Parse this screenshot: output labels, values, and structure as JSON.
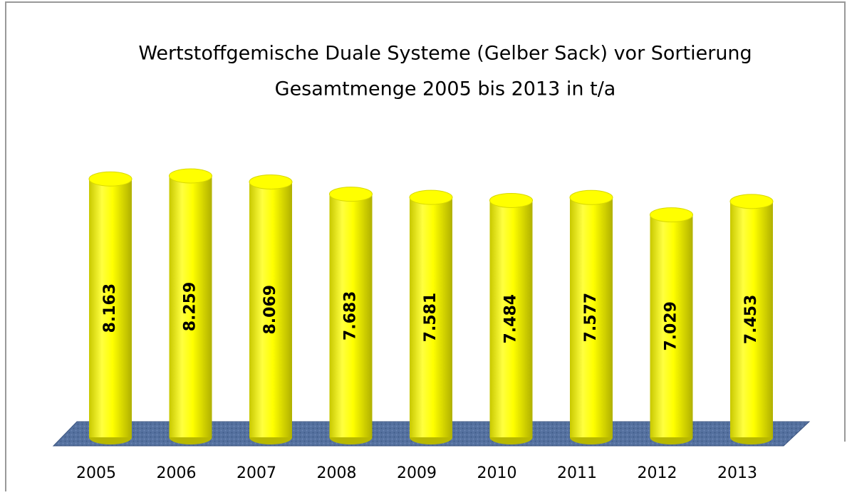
{
  "chart_data": {
    "type": "bar",
    "title": "Wertstoffgemische Duale Systeme (Gelber Sack) vor Sortierung",
    "subtitle": "Gesamtmenge 2005 bis 2013 in t/a",
    "categories": [
      "2005",
      "2006",
      "2007",
      "2008",
      "2009",
      "2010",
      "2011",
      "2012",
      "2013"
    ],
    "values": [
      8163,
      8259,
      8069,
      7683,
      7581,
      7484,
      7577,
      7029,
      7453
    ],
    "value_labels": [
      "8.163",
      "8.259",
      "8.069",
      "7.683",
      "7.581",
      "7.484",
      "7.577",
      "7.029",
      "7.453"
    ],
    "color": "#ffff00"
  }
}
